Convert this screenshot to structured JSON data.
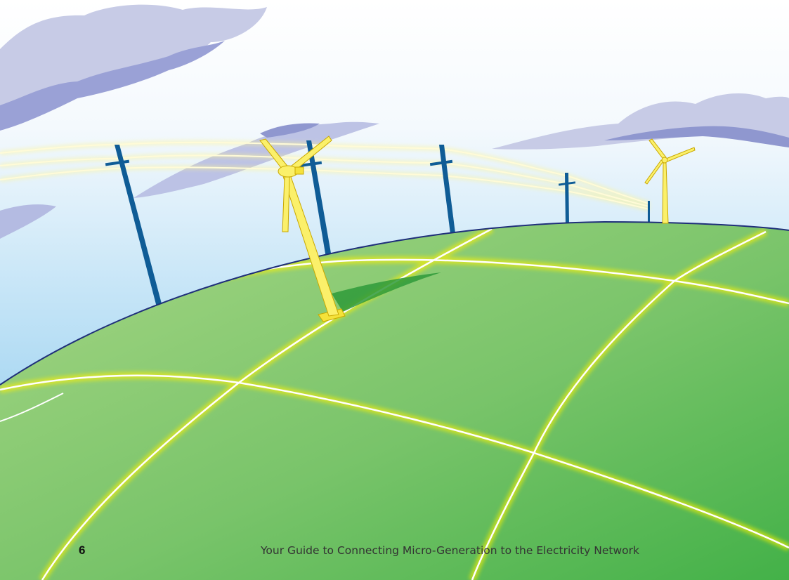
{
  "page": {
    "number": "6",
    "footer_title": "Your Guide to Connecting Micro-Generation to the Electricity Network"
  },
  "colors": {
    "sky_top": "#ffffff",
    "sky_bottom": "#86c8ec",
    "cloud": "#c7cbe6",
    "cloud_shade": "#8f97cf",
    "globe_light": "#9dd07e",
    "globe_dark": "#4cb54c",
    "globe_outline": "#1f2f7a",
    "grid_line": "#ffffff",
    "grid_glow": "#fff200",
    "pole": "#0f5c96",
    "power_line": "#fffbd8",
    "turbine": "#fbf06a",
    "turbine_edge": "#c9a800"
  }
}
